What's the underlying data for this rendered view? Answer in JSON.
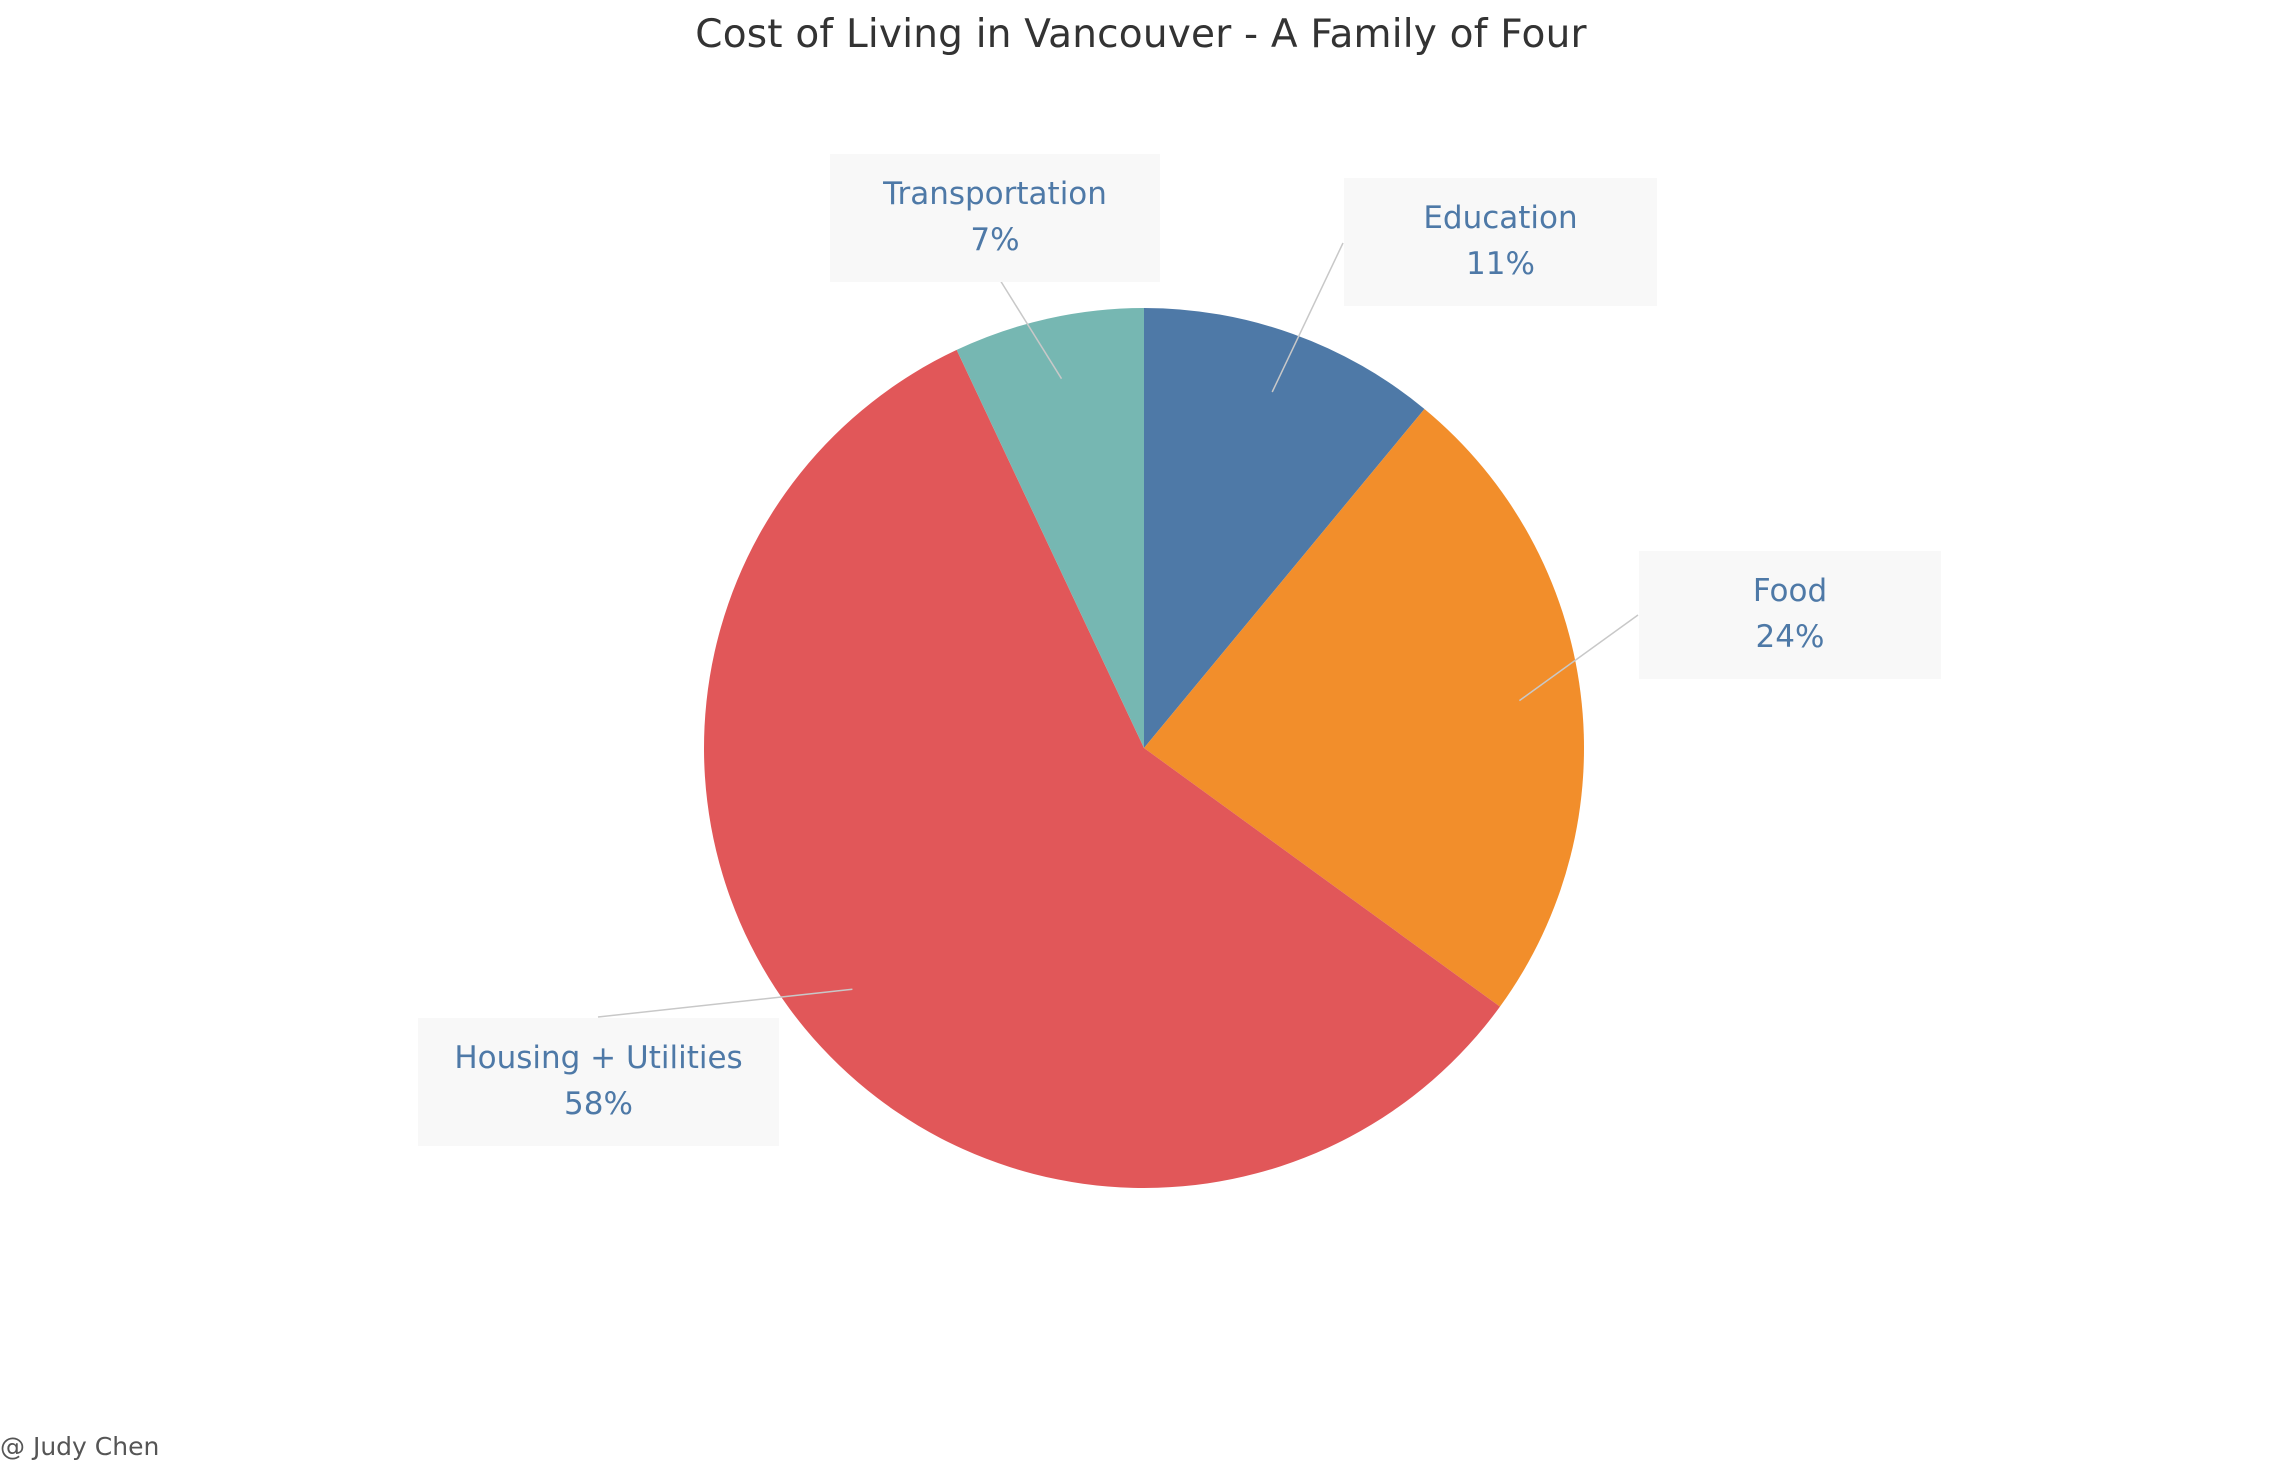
{
  "chart_data": {
    "type": "pie",
    "title": "Cost of Living in Vancouver - A Family of Four",
    "slices": [
      {
        "label": "Education",
        "value": 11,
        "value_label": "11%",
        "color": "#4e79a7"
      },
      {
        "label": "Food",
        "value": 24,
        "value_label": "24%",
        "color": "#f28e2b"
      },
      {
        "label": "Housing + Utilities",
        "value": 58,
        "value_label": "58%",
        "color": "#e15759"
      },
      {
        "label": "Transportation",
        "value": 7,
        "value_label": "7%",
        "color": "#76b7b2"
      }
    ],
    "start_angle": "12 o'clock",
    "direction": "clockwise",
    "label_text_color": "#4e79a7",
    "leader_line_color": "#c8c8c8",
    "label_box_color": "#f8f8f8"
  },
  "credit": "@ Judy Chen"
}
